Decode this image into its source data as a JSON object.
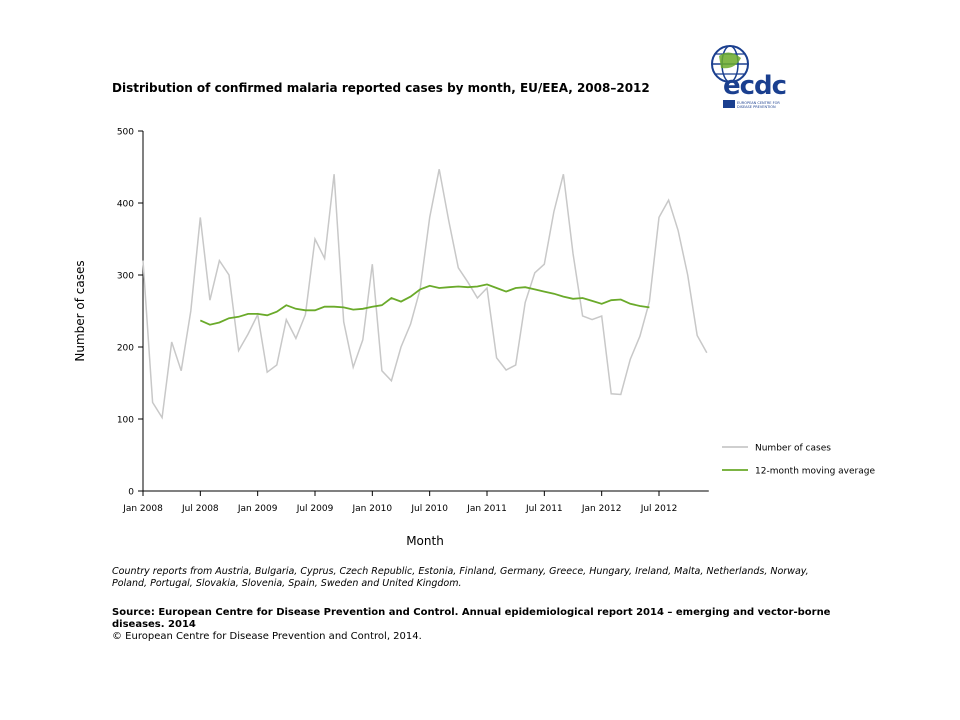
{
  "logo": {
    "text": "ecdc",
    "subtitle": "EUROPEAN CENTRE FOR DISEASE PREVENTION AND CONTROL"
  },
  "footer": {
    "note": "Country reports from Austria, Bulgaria, Cyprus, Czech Republic, Estonia, Finland, Germany, Greece, Hungary, Ireland, Malta, Netherlands, Norway, Poland, Portugal, Slovakia, Slovenia, Spain, Sweden and United Kingdom.",
    "source": "Source: European Centre for Disease Prevention and Control.  Annual epidemiological report 2014 – emerging and vector-borne diseases. 2014",
    "copyright": "© European Centre for Disease Prevention and Control, 2014."
  },
  "chart_data": {
    "type": "line",
    "title": "Distribution of confirmed malaria reported cases by month, EU/EEA, 2008–2012",
    "xlabel": "Month",
    "ylabel": "Number of cases",
    "ylim": [
      0,
      500
    ],
    "yticks": [
      0,
      100,
      200,
      300,
      400,
      500
    ],
    "xticks": [
      "Jan 2008",
      "Jul 2008",
      "Jan 2009",
      "Jul 2009",
      "Jan 2010",
      "Jul 2010",
      "Jan 2011",
      "Jul 2011",
      "Jan 2012",
      "Jul 2012"
    ],
    "grid": false,
    "legend_position": "right",
    "x_start": "Jan 2008",
    "series": [
      {
        "name": "Number of cases",
        "color": "#c8c8c8",
        "start": "Jan 2008",
        "values": [
          320,
          123,
          102,
          207,
          167,
          250,
          380,
          265,
          320,
          300,
          195,
          218,
          245,
          165,
          175,
          238,
          212,
          245,
          350,
          323,
          440,
          235,
          172,
          210,
          315,
          167,
          153,
          200,
          232,
          280,
          380,
          447,
          375,
          310,
          290,
          268,
          282,
          185,
          168,
          175,
          262,
          303,
          315,
          388,
          440,
          330,
          243,
          238,
          243,
          135,
          134,
          183,
          215,
          263,
          380,
          404,
          362,
          300,
          216,
          192
        ]
      },
      {
        "name": "12-month moving average",
        "color": "#6aaa2a",
        "start": "Jul 2008",
        "values": [
          237,
          231,
          234,
          240,
          242,
          246,
          246,
          244,
          249,
          258,
          253,
          251,
          251,
          256,
          256,
          255,
          252,
          253,
          256,
          258,
          268,
          263,
          270,
          280,
          285,
          282,
          283,
          284,
          283,
          284,
          287,
          282,
          277,
          282,
          283,
          280,
          277,
          274,
          270,
          267,
          268,
          264,
          260,
          265,
          266,
          260,
          257,
          255
        ]
      }
    ]
  }
}
